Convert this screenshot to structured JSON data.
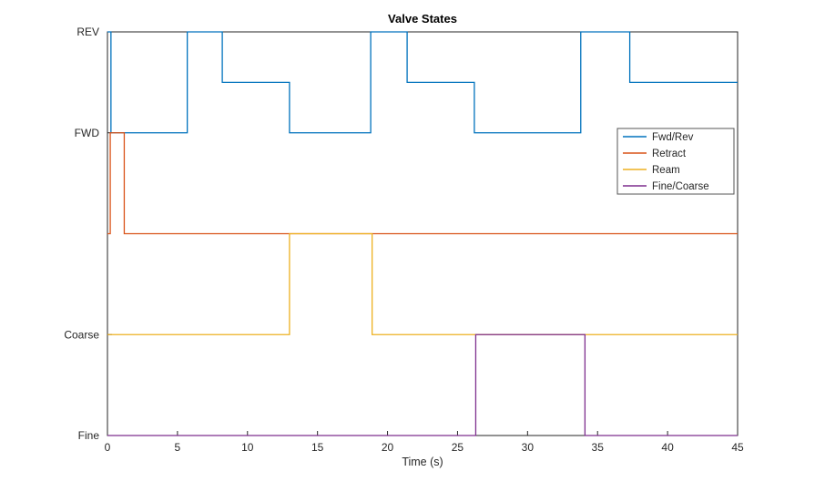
{
  "chart_data": {
    "type": "line",
    "subtype": "step",
    "title": "Valve States",
    "xlabel": "Time (s)",
    "ylabel": "",
    "xlim": [
      0,
      45
    ],
    "ylim": [
      0,
      4
    ],
    "grid": false,
    "axis_color": "#262626",
    "background": "#ffffff",
    "xticks": [
      0,
      5,
      10,
      15,
      20,
      25,
      30,
      35,
      40,
      45
    ],
    "yticks": [
      {
        "value": 0,
        "label": "Fine"
      },
      {
        "value": 1,
        "label": "Coarse"
      },
      {
        "value": 3,
        "label": "FWD"
      },
      {
        "value": 4,
        "label": "REV"
      }
    ],
    "legend": {
      "position": "right-inside",
      "border": true,
      "entries": [
        "Fwd/Rev",
        "Retract",
        "Ream",
        "Fine/Coarse"
      ]
    },
    "series": [
      {
        "name": "Fwd/Rev",
        "color": "#0072BD",
        "steps": [
          [
            0,
            4
          ],
          [
            0.25,
            3
          ],
          [
            5.7,
            4
          ],
          [
            8.2,
            3.5
          ],
          [
            13,
            3
          ],
          [
            18.8,
            4
          ],
          [
            21.4,
            3.5
          ],
          [
            26.2,
            3
          ],
          [
            33.8,
            4
          ],
          [
            37.3,
            3.5
          ],
          [
            45,
            3.5
          ]
        ]
      },
      {
        "name": "Retract",
        "color": "#D95319",
        "steps": [
          [
            0,
            2
          ],
          [
            0.2,
            3
          ],
          [
            1.2,
            2
          ],
          [
            45,
            2
          ]
        ]
      },
      {
        "name": "Ream",
        "color": "#EDB120",
        "steps": [
          [
            0,
            1
          ],
          [
            13,
            2
          ],
          [
            18.9,
            1
          ],
          [
            45,
            1
          ]
        ]
      },
      {
        "name": "Fine/Coarse",
        "color": "#7E2F8E",
        "steps": [
          [
            0,
            0
          ],
          [
            26.3,
            1
          ],
          [
            34.1,
            0
          ],
          [
            45,
            0
          ]
        ]
      }
    ]
  }
}
